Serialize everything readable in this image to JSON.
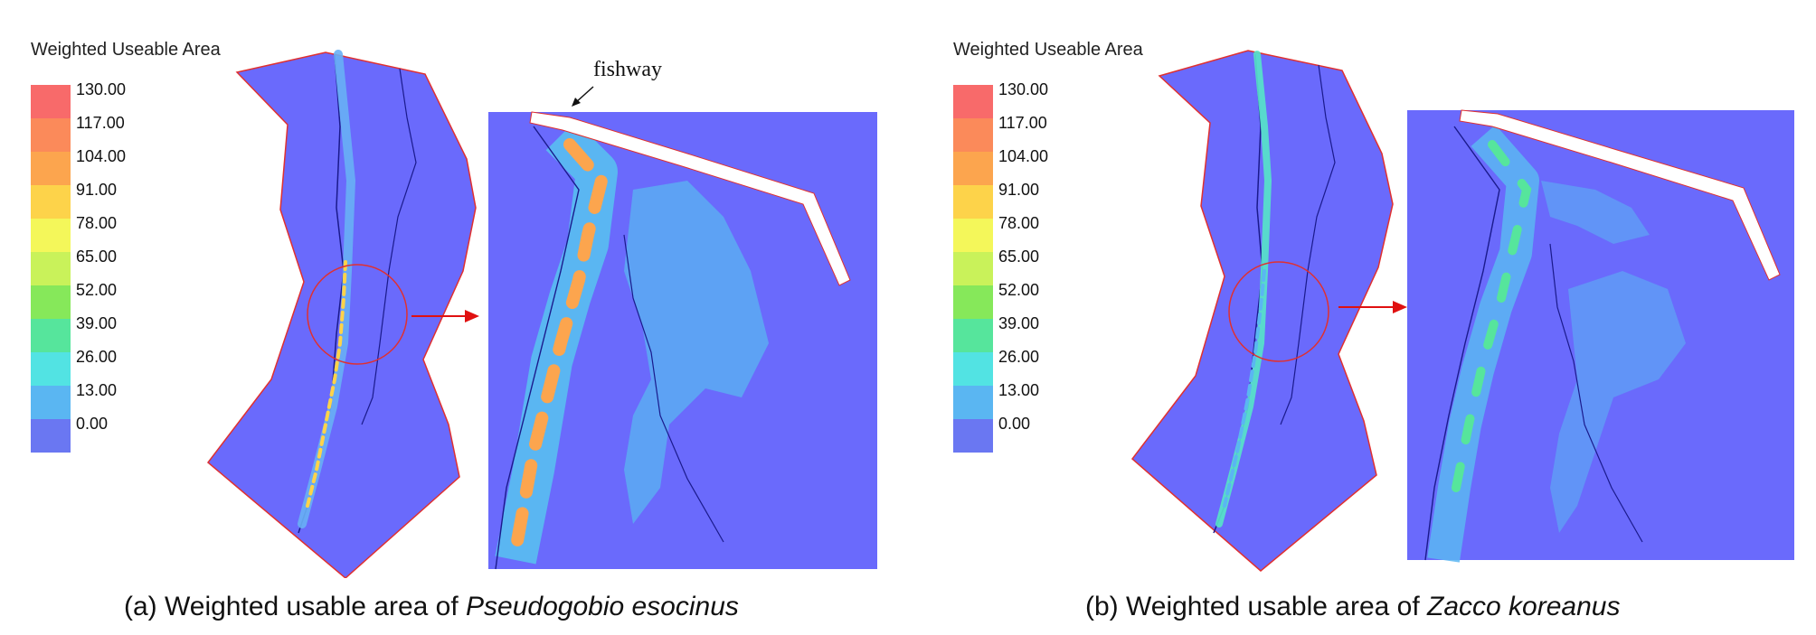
{
  "legend": {
    "title": "Weighted Useable Area",
    "ticks": [
      "130.00",
      "117.00",
      "104.00",
      "91.00",
      "78.00",
      "65.00",
      "52.00",
      "39.00",
      "26.00",
      "13.00",
      "0.00"
    ],
    "colors": [
      "#f86a6a",
      "#fb8a5a",
      "#fca54e",
      "#fdd34a",
      "#f4f75a",
      "#c9f25a",
      "#86e85a",
      "#56e59c",
      "#52e3e3",
      "#5ab6f2",
      "#6a77f2"
    ]
  },
  "panels": [
    {
      "caption_prefix": "(a) Weighted usable area of ",
      "caption_species": "Pseudogobio esocinus",
      "annotation": "fishway"
    },
    {
      "caption_prefix": "(b) Weighted usable area of ",
      "caption_species": "Zacco koreanus"
    }
  ],
  "colors": {
    "water": "#6a6afc",
    "boundary": "#1a1a8c",
    "outline": "#e03030",
    "arrow": "#e01010"
  }
}
